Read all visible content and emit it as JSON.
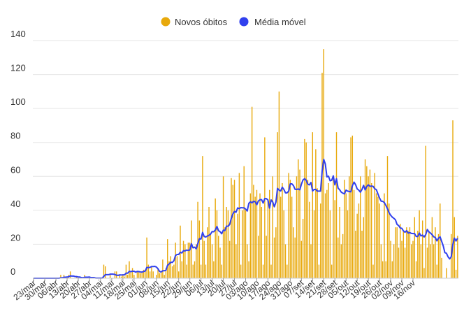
{
  "chart_data": {
    "type": "bar",
    "title": "",
    "xlabel": "",
    "ylabel": "",
    "ylim": [
      0,
      140
    ],
    "yticks": [
      0,
      20,
      40,
      60,
      80,
      100,
      120,
      140
    ],
    "grid": true,
    "legend_position": "top-center",
    "x_tick_labels": [
      "23/mar",
      "30/mar",
      "06/abr",
      "13/abr",
      "20/abr",
      "27/abr",
      "04/mai",
      "11/mai",
      "18/mai",
      "25/mai",
      "01/jun",
      "08/jun",
      "15/jun",
      "22/jun",
      "29/jun",
      "06/jul",
      "13/jul",
      "20/jul",
      "27/jul",
      "03/ago",
      "10/ago",
      "17/ago",
      "24/ago",
      "31/ago",
      "07/set",
      "14/set",
      "21/set",
      "28/set",
      "05/out",
      "12/out",
      "19/out",
      "26/out",
      "02/nov",
      "09/nov",
      "16/nov"
    ],
    "series": [
      {
        "name": "Novos óbitos",
        "kind": "bar",
        "color": "#e8a90b",
        "values": [
          0,
          0,
          0,
          0,
          0,
          0,
          0,
          0,
          0,
          0,
          0,
          0,
          0,
          0,
          0,
          0,
          0,
          2,
          0,
          2,
          0,
          1,
          2,
          4,
          0,
          0,
          0,
          1,
          0,
          1,
          0,
          0,
          2,
          0,
          0,
          1,
          0,
          0,
          0,
          0,
          0,
          0,
          0,
          0,
          8,
          7,
          0,
          0,
          2,
          0,
          0,
          4,
          4,
          0,
          2,
          1,
          2,
          1,
          8,
          2,
          10,
          4,
          6,
          2,
          0,
          4,
          4,
          3,
          4,
          5,
          5,
          24,
          8,
          4,
          7,
          4,
          0,
          2,
          6,
          3,
          4,
          11,
          2,
          6,
          23,
          10,
          13,
          7,
          8,
          21,
          13,
          4,
          31,
          10,
          22,
          20,
          8,
          21,
          21,
          34,
          8,
          10,
          20,
          45,
          34,
          8,
          72,
          22,
          8,
          30,
          42,
          26,
          20,
          10,
          47,
          40,
          25,
          18,
          8,
          60,
          30,
          42,
          40,
          22,
          59,
          55,
          58,
          20,
          38,
          62,
          8,
          40,
          66,
          40,
          20,
          10,
          50,
          101,
          55,
          48,
          52,
          25,
          50,
          42,
          8,
          83,
          25,
          46,
          52,
          8,
          60,
          24,
          30,
          86,
          110,
          48,
          56,
          40,
          20,
          8,
          62,
          58,
          48,
          30,
          24,
          60,
          70,
          64,
          22,
          35,
          82,
          80,
          58,
          45,
          20,
          86,
          40,
          76,
          53,
          8,
          44,
          121,
          135,
          50,
          52,
          56,
          40,
          8,
          60,
          46,
          86,
          24,
          42,
          20,
          26,
          58,
          50,
          40,
          60,
          83,
          84,
          52,
          28,
          38,
          44,
          60,
          28,
          36,
          70,
          66,
          60,
          64,
          56,
          8,
          62,
          50,
          48,
          44,
          20,
          10,
          50,
          10,
          72,
          44,
          22,
          10,
          20,
          30,
          30,
          18,
          32,
          22,
          28,
          18,
          30,
          28,
          30,
          20,
          22,
          36,
          10,
          28,
          40,
          20,
          34,
          6,
          78,
          18,
          28,
          20,
          36,
          20,
          30,
          8,
          26,
          44,
          12,
          0,
          0,
          6,
          0,
          0,
          26,
          93,
          36,
          5,
          25
        ]
      },
      {
        "name": "Média móvel",
        "kind": "line",
        "color": "#3040ee",
        "values": [
          0,
          0,
          0,
          0,
          0,
          0,
          0,
          0,
          0,
          0,
          0,
          0,
          0,
          0,
          0,
          0,
          0,
          0.3,
          0.3,
          0.6,
          0.6,
          0.7,
          0.9,
          1.4,
          1.3,
          1.3,
          1.0,
          1.0,
          0.7,
          0.7,
          0.4,
          0.3,
          0.6,
          0.6,
          0.6,
          0.7,
          0.4,
          0.4,
          0.4,
          0.1,
          0.1,
          0.1,
          0.1,
          0.1,
          1.1,
          2.1,
          2.1,
          2.1,
          2.4,
          2.4,
          2.4,
          2.2,
          1.8,
          1.7,
          2.0,
          1.9,
          2.0,
          2.0,
          3.0,
          3.0,
          4.0,
          3.9,
          4.1,
          4.1,
          3.6,
          4.0,
          3.9,
          3.7,
          3.6,
          4.0,
          4.2,
          6.4,
          6.3,
          6.4,
          6.9,
          6.9,
          7.0,
          6.6,
          5.6,
          4.0,
          3.7,
          4.4,
          4.4,
          4.7,
          7.6,
          8.4,
          9.4,
          9.3,
          10.3,
          13.4,
          14.0,
          14.0,
          15.3,
          14.9,
          16.2,
          16.1,
          16.6,
          16.4,
          16.7,
          20.3,
          17.9,
          18.3,
          17.3,
          20.4,
          23.3,
          23.1,
          27.0,
          24.6,
          24.3,
          24.8,
          25.3,
          26.0,
          27.5,
          27.4,
          28.4,
          30.5,
          28.0,
          27.4,
          26.2,
          28.3,
          28.1,
          30.7,
          30.6,
          31.7,
          35.2,
          37.9,
          39.3,
          38.9,
          41.4,
          41.0,
          41.6,
          41.5,
          41.5,
          40.7,
          39.6,
          44.1,
          45.0,
          44.4,
          45.3,
          45.1,
          43.3,
          45.5,
          46.2,
          46.3,
          44.3,
          46.9,
          46.9,
          46.1,
          41.3,
          46.1,
          44.9,
          42.1,
          44.9,
          52.9,
          51.9,
          51.4,
          53.6,
          52.3,
          50.3,
          50.3,
          51.3,
          55.6,
          55.6,
          54.6,
          52.4,
          52.3,
          52.6,
          52.1,
          55.4,
          57.9,
          58.6,
          57.7,
          55.4,
          55.0,
          56.4,
          51.4,
          52.3,
          52.3,
          51.3,
          51.3,
          51.3,
          63.0,
          70.0,
          67.3,
          59.7,
          60.1,
          57.4,
          57.7,
          60.3,
          55.0,
          58.6,
          53.1,
          52.1,
          50.7,
          50.1,
          49.7,
          51.9,
          51.3,
          51.1,
          50.9,
          54.5,
          56.6,
          55.1,
          52.6,
          51.9,
          50.7,
          52.3,
          54.7,
          52.0,
          54.1,
          55.0,
          54.1,
          54.3,
          54.1,
          52.7,
          52.2,
          49.7,
          47.3,
          45.4,
          45.3,
          44.6,
          42.9,
          40.9,
          38.6,
          37.1,
          36.0,
          35.3,
          34.4,
          31.7,
          31.0,
          29.6,
          29.4,
          27.9,
          27.1,
          28.0,
          26.6,
          26.9,
          26.4,
          26.3,
          26.3,
          24.6,
          24.6,
          26.6,
          24.9,
          25.4,
          24.3,
          25.7,
          28.7,
          27.3,
          26.6,
          25.7,
          24.4,
          24.0,
          22.0,
          23.6,
          24.4,
          21.7,
          19.0,
          15.1,
          14.7,
          12.6,
          11.4,
          12.6,
          19.9,
          23.6,
          21.9,
          23.6
        ]
      }
    ]
  }
}
